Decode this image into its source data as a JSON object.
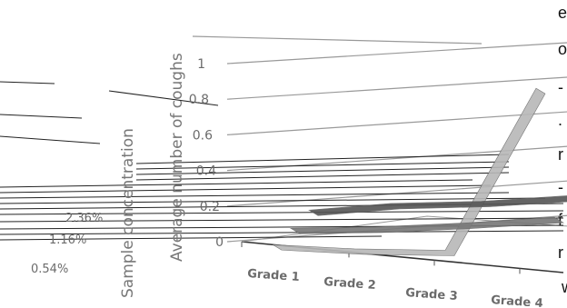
{
  "left_edge_text": [
    "e",
    "o",
    "-",
    ".",
    "r",
    "-",
    "f",
    "r",
    "w"
  ],
  "chart_data": {
    "type": "line",
    "view": "3d",
    "title": "",
    "ylabel": "Average number of coughs",
    "zlabel": "Sample concentration",
    "x": [
      "Grade 1",
      "Grade 2",
      "Grade 3",
      "Grade 4"
    ],
    "series": [
      {
        "name": "0.54%",
        "values": [
          0.0,
          0.02,
          0.06,
          1.0
        ]
      },
      {
        "name": "1.16%",
        "values": [
          0.0,
          0.05,
          0.12,
          0.2
        ]
      },
      {
        "name": "2.36%",
        "values": [
          0.02,
          0.1,
          0.16,
          0.24
        ]
      }
    ],
    "y_ticks": [
      "0",
      "0.2",
      "0.4",
      "0.6",
      "0.8",
      "1"
    ],
    "ylim": [
      0,
      1
    ],
    "grid": true,
    "colors": {
      "line": "#999999",
      "series_front": "#b8b8b8",
      "series_mid": "#777777",
      "series_back": "#555555",
      "text": "#6b6b6b"
    }
  }
}
